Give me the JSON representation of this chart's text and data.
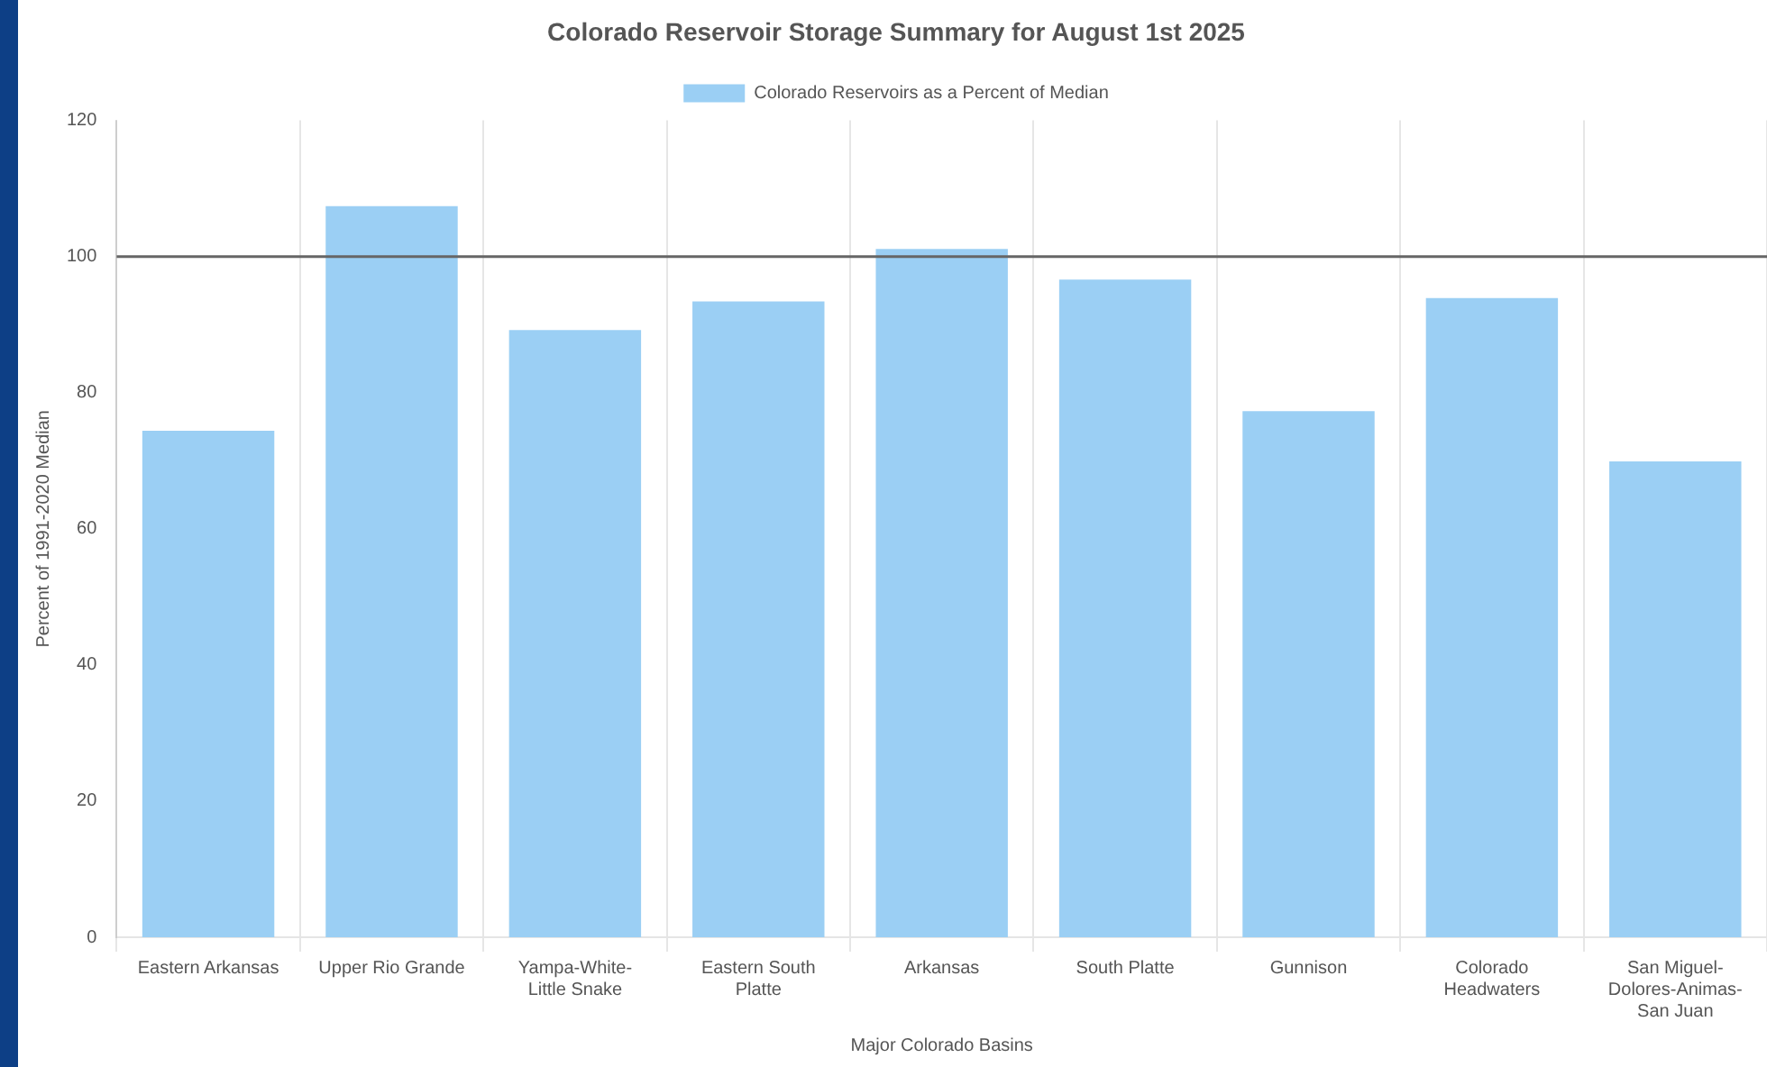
{
  "chart_data": {
    "type": "bar",
    "title": "Colorado Reservoir Storage Summary for August 1st 2025",
    "xlabel": "Major Colorado Basins",
    "ylabel": "Percent of 1991-2020 Median",
    "categories": [
      "Eastern Arkansas",
      "Upper Rio Grande",
      "Yampa-White-Little Snake",
      "Eastern South Platte",
      "Arkansas",
      "South Platte",
      "Gunnison",
      "Colorado Headwaters",
      "San Miguel-Dolores-Animas-San Juan"
    ],
    "series": [
      {
        "name": "Colorado Reservoirs as a Percent of Median",
        "color": "#9bcff4",
        "values": [
          74.4,
          107.4,
          89.2,
          93.4,
          101.1,
          96.6,
          77.3,
          93.9,
          69.9
        ]
      }
    ],
    "ylim": [
      0,
      120
    ],
    "yticks": [
      0,
      20,
      40,
      60,
      80,
      100,
      120
    ],
    "grid": "x",
    "legend": "top",
    "ref_lines": [
      {
        "axis": "y",
        "value": 100,
        "color": "#666666"
      }
    ]
  }
}
